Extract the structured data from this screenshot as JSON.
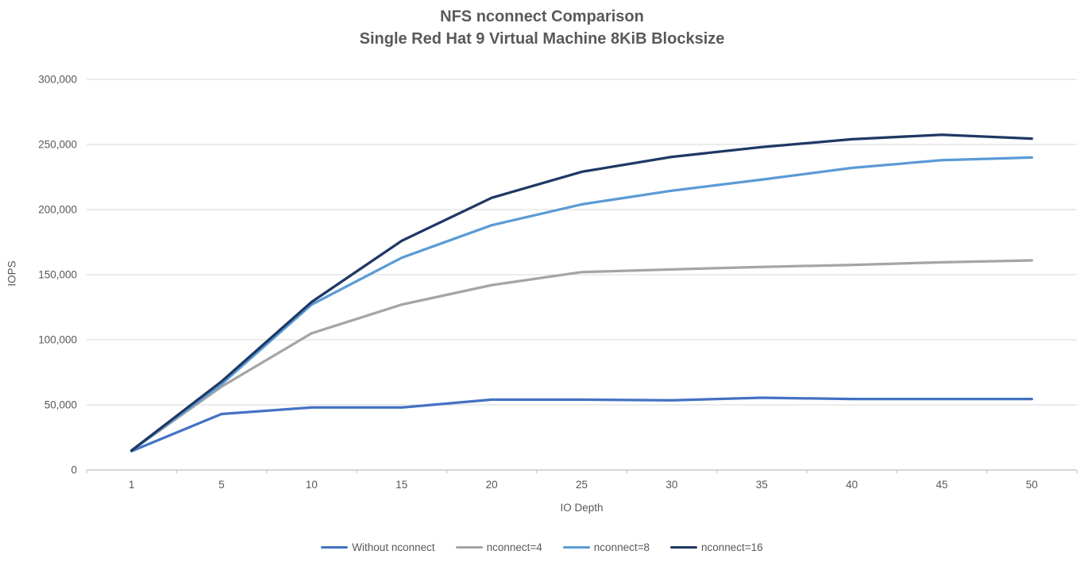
{
  "chart_data": {
    "type": "line",
    "title": "NFS nconnect Comparison",
    "subtitle": "Single Red Hat 9 Virtual Machine 8KiB Blocksize",
    "xlabel": "IO Depth",
    "ylabel": "IOPS",
    "x": [
      1,
      5,
      10,
      15,
      20,
      25,
      30,
      35,
      40,
      45,
      50
    ],
    "ylim": [
      0,
      300000
    ],
    "ytick_interval": 50000,
    "ytick_labels": [
      "0",
      "50,000",
      "100,000",
      "150,000",
      "200,000",
      "250,000",
      "300,000"
    ],
    "grid": true,
    "legend_position": "bottom",
    "colors": {
      "axis_line": "#BFBFBF",
      "gridline": "#D9D9D9",
      "label_text": "#595959"
    },
    "series": [
      {
        "name": "Without nconnect",
        "color": "#4472C4",
        "values": [
          14500,
          43000,
          48000,
          48000,
          54000,
          54000,
          53500,
          55500,
          54500,
          54500,
          54500
        ]
      },
      {
        "name": "nconnect=4",
        "color": "#A5A5A5",
        "values": [
          15000,
          64000,
          105000,
          127000,
          142000,
          152000,
          154000,
          156000,
          157500,
          159500,
          161000
        ]
      },
      {
        "name": "nconnect=8",
        "color": "#5B9BD5",
        "values": [
          15000,
          66000,
          127000,
          163000,
          188000,
          204000,
          214500,
          223000,
          232000,
          238000,
          240000
        ]
      },
      {
        "name": "nconnect=16",
        "color": "#1F3864",
        "values": [
          15000,
          68000,
          129000,
          176000,
          209000,
          229000,
          240500,
          248000,
          254000,
          257500,
          254500
        ]
      }
    ]
  }
}
